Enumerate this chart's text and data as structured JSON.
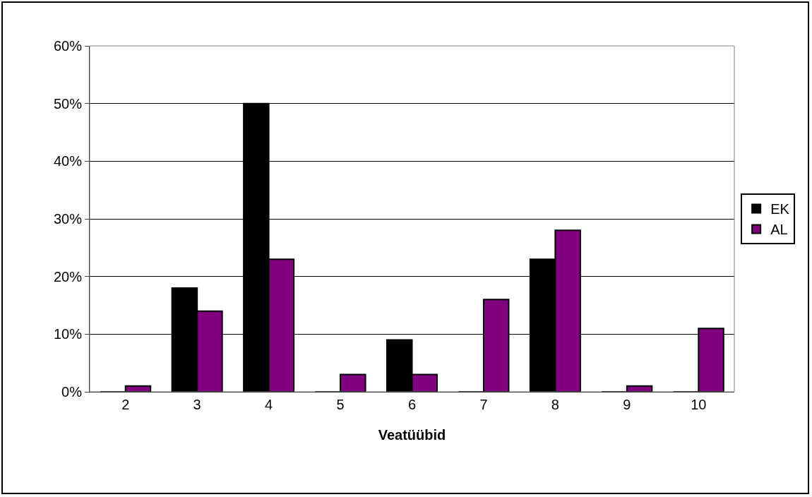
{
  "chart_data": {
    "type": "bar",
    "xlabel": "Veatüübid",
    "categories": [
      "2",
      "3",
      "4",
      "5",
      "6",
      "7",
      "8",
      "9",
      "10"
    ],
    "series": [
      {
        "name": "EK",
        "color": "#000000",
        "values": [
          0,
          18,
          50,
          0,
          9,
          0,
          23,
          0,
          0
        ]
      },
      {
        "name": "AL",
        "color": "#800080",
        "values": [
          1,
          14,
          23,
          3,
          3,
          16,
          28,
          1,
          11
        ]
      }
    ],
    "ylim": [
      0,
      60
    ],
    "yticks": [
      {
        "value": 0,
        "label": "0%"
      },
      {
        "value": 10,
        "label": "10%"
      },
      {
        "value": 20,
        "label": "20%"
      },
      {
        "value": 30,
        "label": "30%"
      },
      {
        "value": 40,
        "label": "40%"
      },
      {
        "value": 50,
        "label": "50%"
      },
      {
        "value": 60,
        "label": "60%"
      }
    ],
    "grid": "y",
    "legend": "right"
  }
}
